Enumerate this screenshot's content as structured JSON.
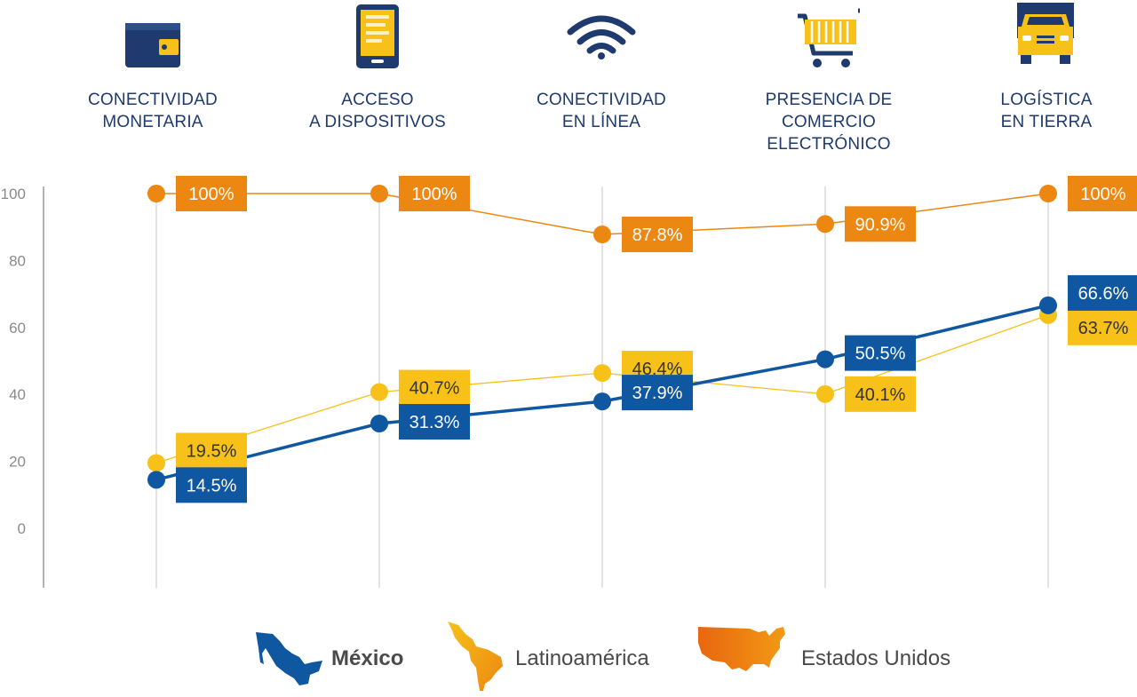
{
  "categories": [
    {
      "line1": "CONECTIVIDAD",
      "line2": "MONETARIA",
      "icon": "wallet-icon"
    },
    {
      "line1": "ACCESO",
      "line2": "A DISPOSITIVOS",
      "icon": "tablet-icon"
    },
    {
      "line1": "CONECTIVIDAD",
      "line2": "EN LÍNEA",
      "icon": "wifi-icon"
    },
    {
      "line1": "PRESENCIA DE",
      "line2": "COMERCIO ELECTRÓNICO",
      "icon": "shopping-cart-icon"
    },
    {
      "line1": "LOGÍSTICA",
      "line2": "EN TIERRA",
      "icon": "truck-icon"
    }
  ],
  "colors": {
    "mexico": "#0f57a0",
    "latam": "#f7c11a",
    "usa": "#ec8711",
    "navy": "#1e3a6e",
    "axis": "#9a9a9a",
    "grid": "#e3e3e3"
  },
  "chart_data": {
    "type": "line",
    "categories": [
      "CONECTIVIDAD MONETARIA",
      "ACCESO A DISPOSITIVOS",
      "CONECTIVIDAD EN LÍNEA",
      "PRESENCIA DE COMERCIO ELECTRÓNICO",
      "LOGÍSTICA EN TIERRA"
    ],
    "ylim": [
      -20,
      105
    ],
    "yticks": [
      0,
      20,
      40,
      60,
      80,
      100
    ],
    "grid": "vertical",
    "legend": "bottom",
    "series": [
      {
        "name": "Estados Unidos",
        "key": "usa",
        "values": [
          100,
          100,
          87.8,
          90.9,
          100
        ],
        "labels": [
          "100%",
          "100%",
          "87.8%",
          "90.9%",
          "100%"
        ]
      },
      {
        "name": "Latinoamérica",
        "key": "latam",
        "values": [
          19.5,
          40.7,
          46.4,
          40.1,
          63.7
        ],
        "labels": [
          "19.5%",
          "40.7%",
          "46.4%",
          "40.1%",
          "63.7%"
        ]
      },
      {
        "name": "México",
        "key": "mexico",
        "values": [
          14.5,
          31.3,
          37.9,
          50.5,
          66.6
        ],
        "labels": [
          "14.5%",
          "31.3%",
          "37.9%",
          "50.5%",
          "66.6%"
        ]
      }
    ]
  },
  "legend": {
    "mexico": "México",
    "latam": "Latinoamérica",
    "usa": "Estados Unidos"
  }
}
